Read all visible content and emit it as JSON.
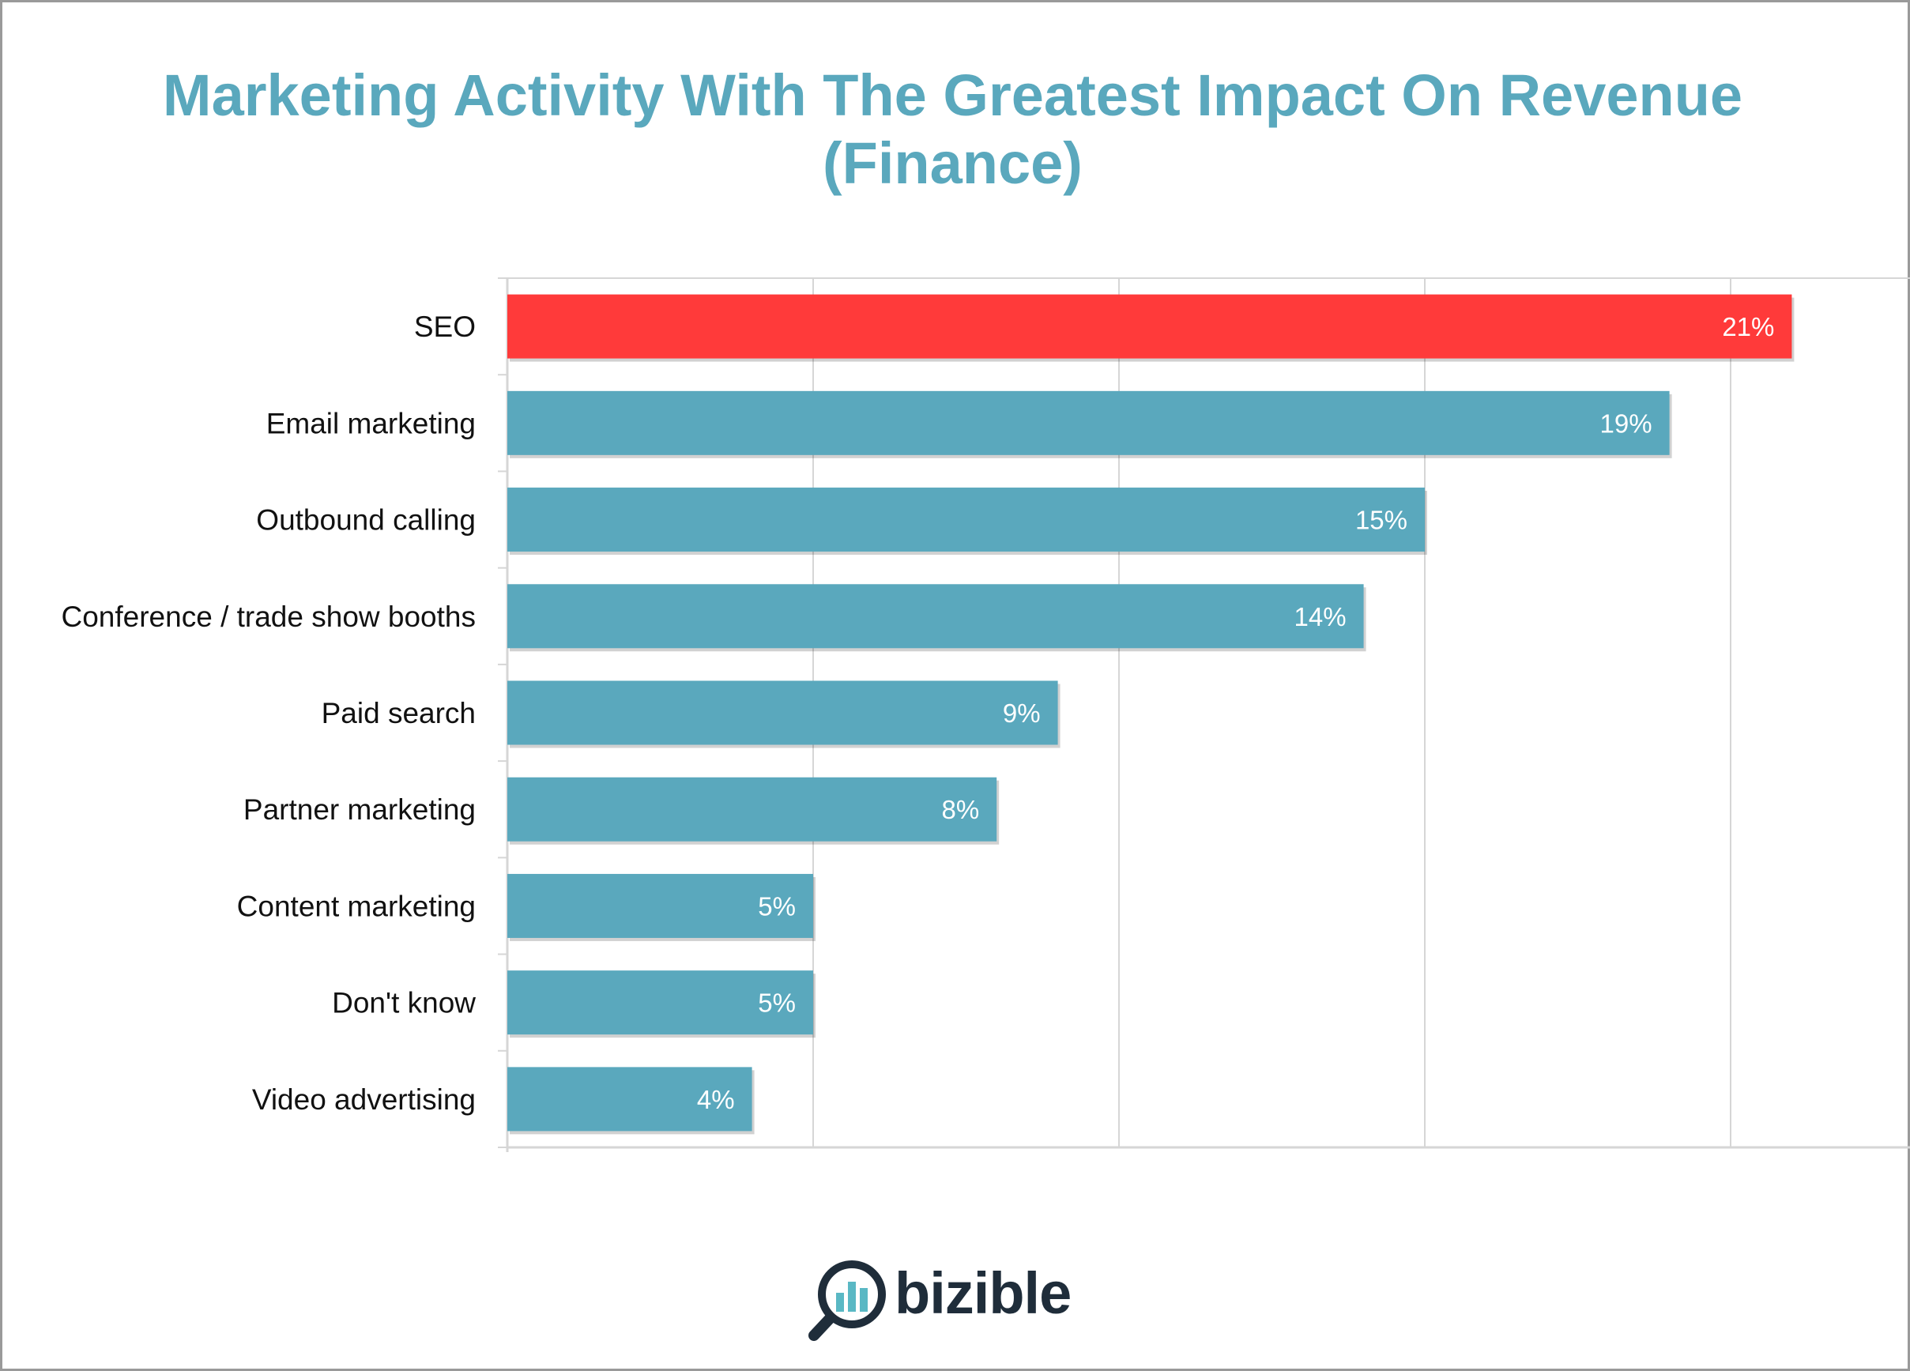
{
  "title_line1": "Marketing Activity With The Greatest Impact On Revenue",
  "title_line2": "(Finance)",
  "logo_text": "bizible",
  "colors": {
    "title": "#5aa8bd",
    "bar": "#5aa8bd",
    "highlight_bar": "#ff3a3a",
    "grid": "#d6d6d6",
    "logo_text": "#1f2d3a",
    "logo_icon": "#5ab8c4"
  },
  "chart_data": {
    "type": "bar",
    "orientation": "horizontal",
    "title": "Marketing Activity With The Greatest Impact On Revenue (Finance)",
    "categories": [
      "SEO",
      "Email marketing",
      "Outbound calling",
      "Conference / trade show booths",
      "Paid search",
      "Partner marketing",
      "Content marketing",
      "Don't know",
      "Video advertising"
    ],
    "values": [
      21,
      19,
      15,
      14,
      9,
      8,
      5,
      5,
      4
    ],
    "value_labels": [
      "21%",
      "19%",
      "15%",
      "14%",
      "9%",
      "8%",
      "5%",
      "5%",
      "4%"
    ],
    "highlight_index": 0,
    "xlim": [
      0,
      23
    ],
    "grid": true,
    "legend": "none"
  }
}
